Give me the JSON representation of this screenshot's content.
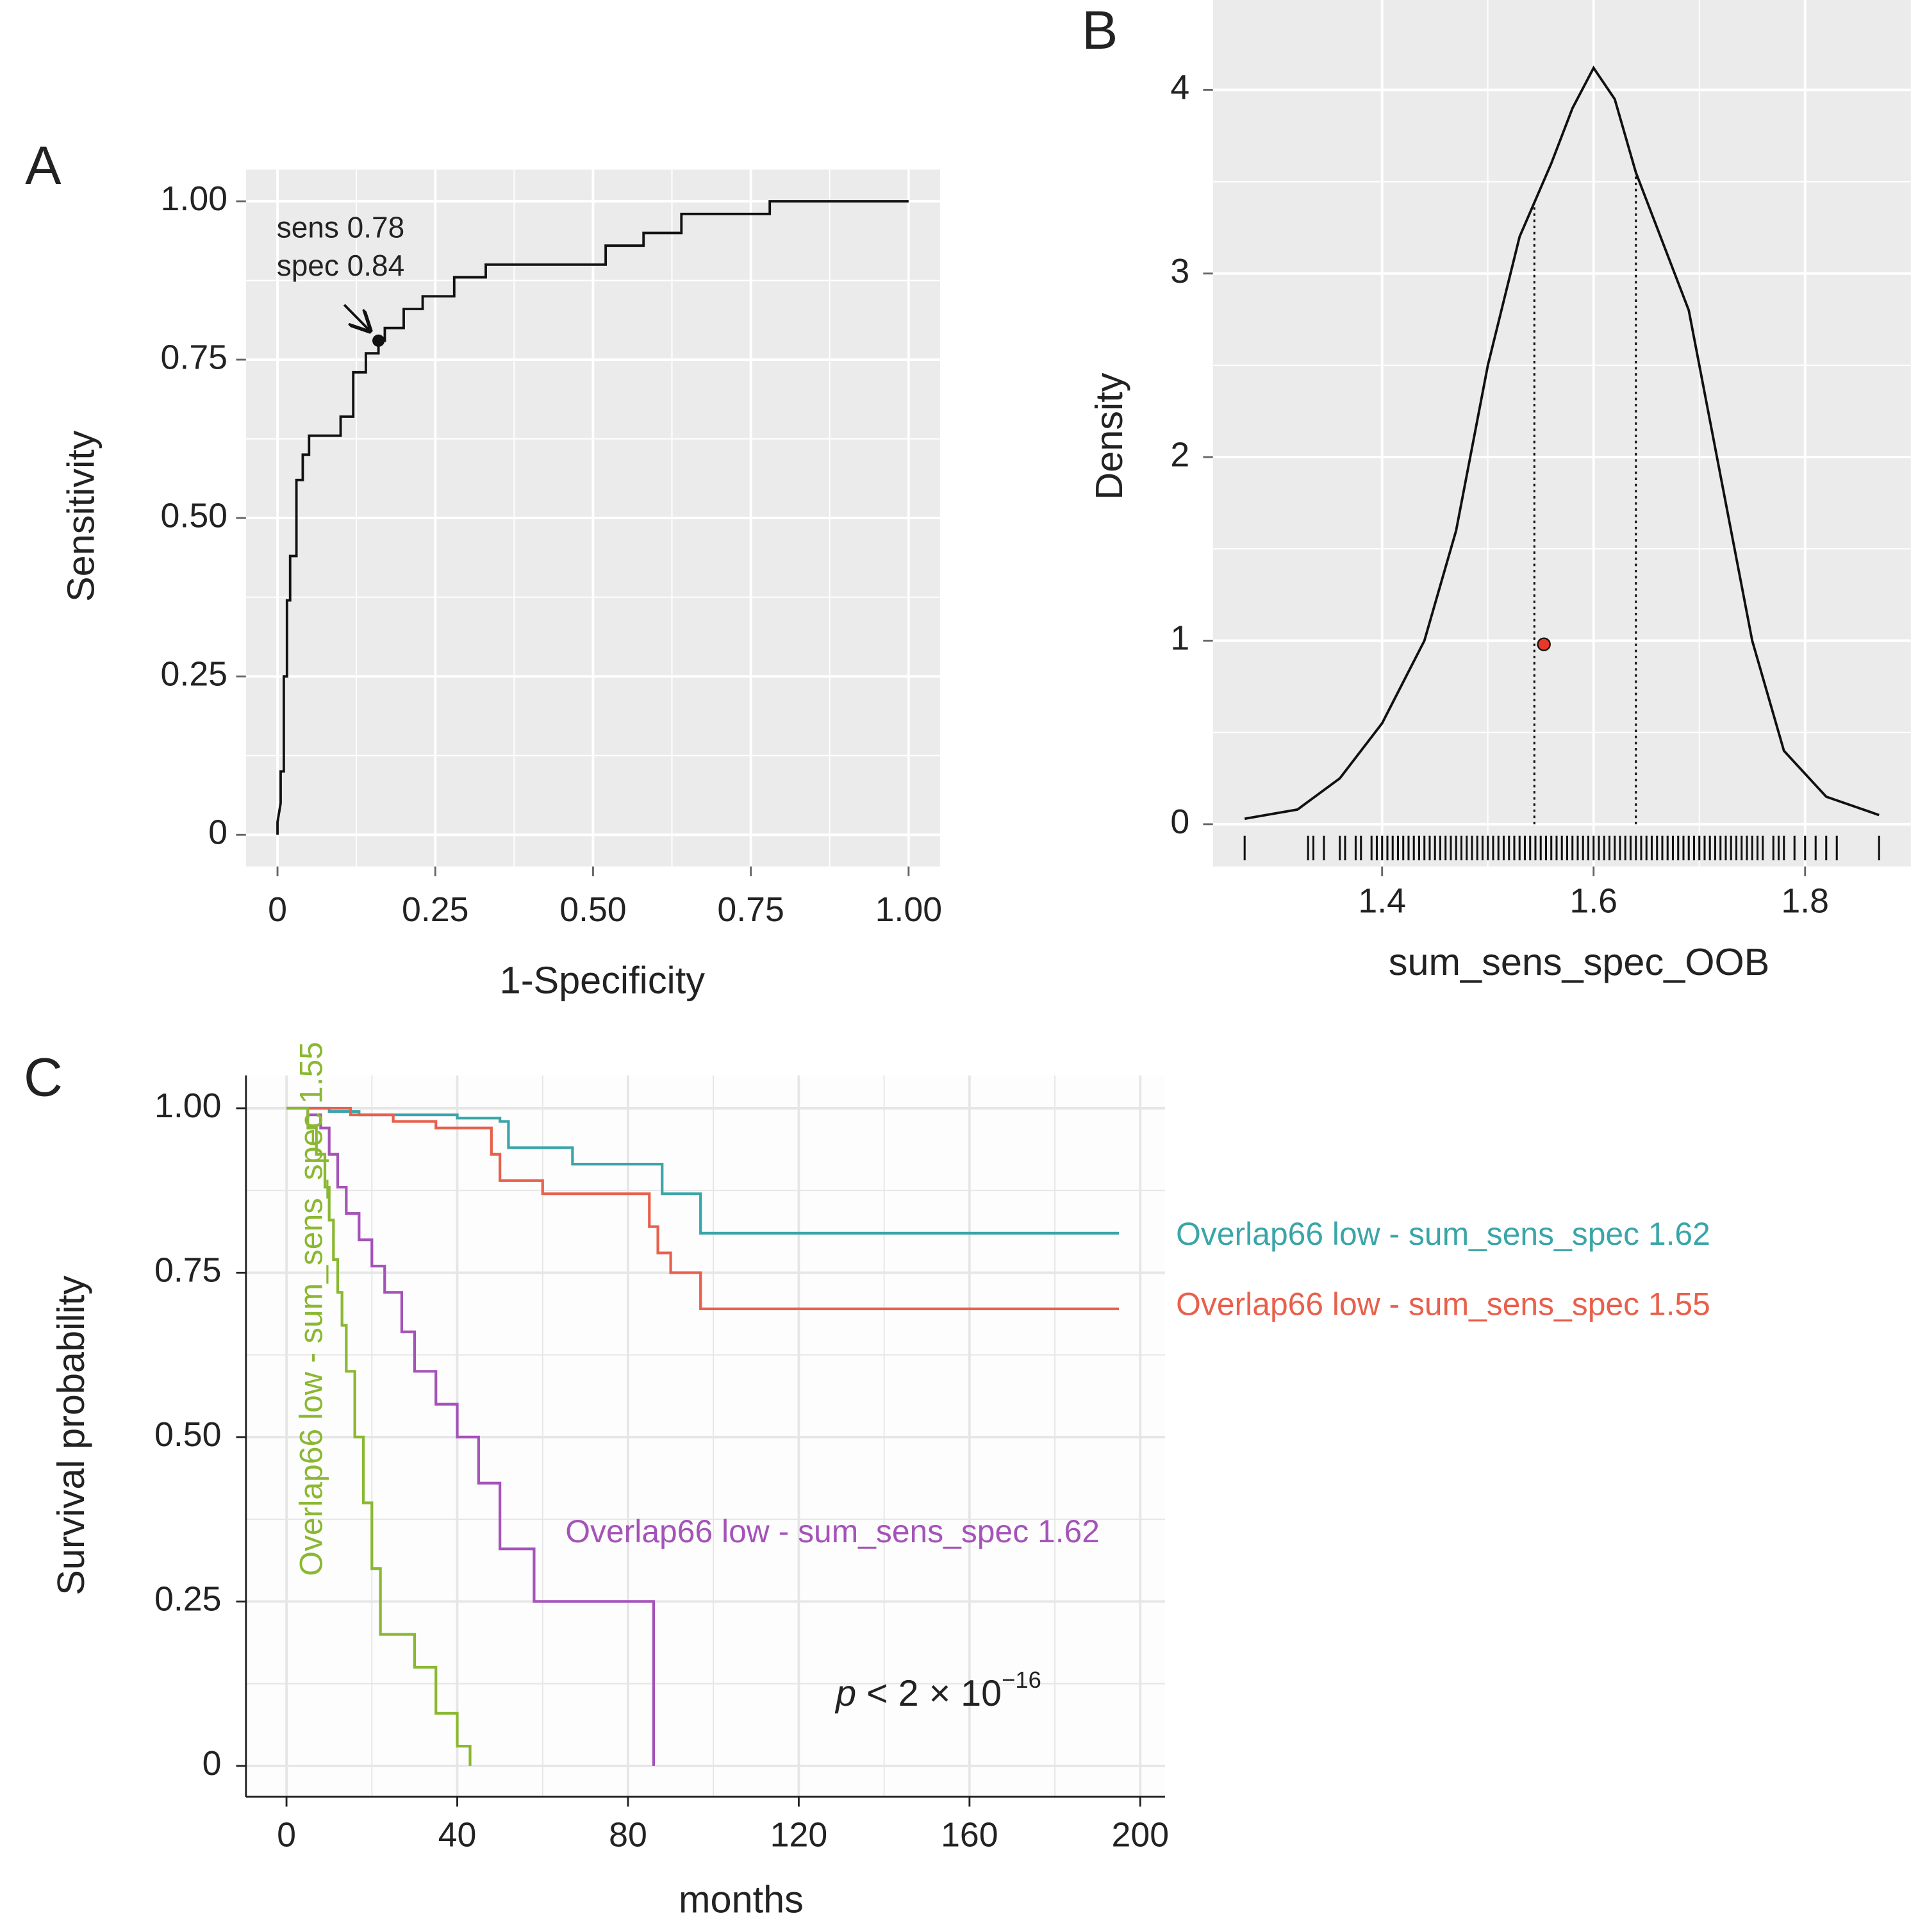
{
  "chart_data": [
    {
      "type": "line",
      "panel": "A",
      "xlabel": "1-Specificity",
      "ylabel": "Sensitivity",
      "xlim": [
        -0.05,
        1.05
      ],
      "ylim": [
        -0.05,
        1.05
      ],
      "xticks": [
        0,
        0.25,
        {
          "value": 0.5,
          "label": "0.50"
        },
        0.75,
        {
          "value": 1,
          "label": "1.00"
        }
      ],
      "yticks": [
        0,
        0.25,
        {
          "value": 0.5,
          "label": "0.50"
        },
        0.75,
        {
          "value": 1,
          "label": "1.00"
        }
      ],
      "grid": true,
      "background": "#ebebeb",
      "series": [
        {
          "color": "#111111",
          "x": [
            0,
            0,
            0.005,
            0.005,
            0.01,
            0.01,
            0.015,
            0.015,
            0.02,
            0.02,
            0.03,
            0.03,
            0.04,
            0.04,
            0.05,
            0.05,
            0.1,
            0.1,
            0.12,
            0.12,
            0.14,
            0.14,
            0.16,
            0.16,
            0.17,
            0.17,
            0.2,
            0.2,
            0.23,
            0.23,
            0.28,
            0.28,
            0.33,
            0.33,
            0.52,
            0.52,
            0.58,
            0.58,
            0.64,
            0.64,
            0.78,
            0.78,
            1
          ],
          "values": [
            0,
            0.02,
            0.05,
            0.1,
            0.1,
            0.25,
            0.25,
            0.37,
            0.37,
            0.44,
            0.44,
            0.56,
            0.56,
            0.6,
            0.6,
            0.63,
            0.63,
            0.66,
            0.66,
            0.73,
            0.73,
            0.76,
            0.76,
            0.78,
            0.78,
            0.8,
            0.8,
            0.83,
            0.83,
            0.85,
            0.85,
            0.88,
            0.88,
            0.9,
            0.9,
            0.93,
            0.93,
            0.95,
            0.95,
            0.98,
            0.98,
            1,
            1
          ]
        }
      ],
      "point": {
        "x": 0.16,
        "y": 0.78
      },
      "annotations": [
        "sens 0.78",
        "spec 0.84"
      ]
    },
    {
      "type": "line",
      "panel": "B",
      "xlabel": "sum_sens_spec_OOB",
      "ylabel": "Density",
      "xlim": [
        1.24,
        1.9
      ],
      "ylim": [
        -0.23,
        4.49
      ],
      "xticks": [
        1.4,
        1.6,
        1.8
      ],
      "yticks": [
        0,
        1,
        2,
        3,
        4
      ],
      "grid": true,
      "background": "#ebebeb",
      "series": [
        {
          "color": "#111111",
          "x": [
            1.27,
            1.32,
            1.36,
            1.4,
            1.44,
            1.47,
            1.5,
            1.53,
            1.56,
            1.58,
            1.6,
            1.62,
            1.64,
            1.66,
            1.69,
            1.72,
            1.75,
            1.78,
            1.82,
            1.87
          ],
          "values": [
            0.03,
            0.08,
            0.25,
            0.55,
            1.0,
            1.6,
            2.5,
            3.2,
            3.6,
            3.9,
            4.12,
            3.95,
            3.55,
            3.25,
            2.8,
            1.9,
            1.0,
            0.4,
            0.15,
            0.05
          ]
        }
      ],
      "vlines": [
        1.544,
        1.64
      ],
      "point": {
        "x": 1.553,
        "y": 0.98
      },
      "rug": [
        1.27,
        1.33,
        1.335,
        1.345,
        1.36,
        1.365,
        1.375,
        1.38,
        1.39,
        1.395,
        1.4,
        1.405,
        1.41,
        1.415,
        1.42,
        1.425,
        1.43,
        1.435,
        1.44,
        1.445,
        1.45,
        1.455,
        1.46,
        1.465,
        1.47,
        1.475,
        1.48,
        1.485,
        1.49,
        1.495,
        1.5,
        1.505,
        1.51,
        1.515,
        1.52,
        1.525,
        1.53,
        1.535,
        1.54,
        1.545,
        1.55,
        1.555,
        1.56,
        1.565,
        1.57,
        1.575,
        1.58,
        1.585,
        1.59,
        1.595,
        1.6,
        1.605,
        1.61,
        1.615,
        1.62,
        1.625,
        1.63,
        1.635,
        1.64,
        1.645,
        1.65,
        1.655,
        1.66,
        1.665,
        1.67,
        1.675,
        1.68,
        1.685,
        1.69,
        1.695,
        1.7,
        1.705,
        1.71,
        1.715,
        1.72,
        1.725,
        1.73,
        1.735,
        1.74,
        1.745,
        1.75,
        1.755,
        1.76,
        1.77,
        1.775,
        1.78,
        1.79,
        1.8,
        1.81,
        1.82,
        1.83,
        1.87
      ]
    },
    {
      "type": "step",
      "panel": "C",
      "xlabel": "months",
      "ylabel": "Survival probability",
      "xlim": [
        -9.5,
        205.8
      ],
      "ylim": [
        -0.047,
        1.05
      ],
      "xticks": [
        0,
        40,
        80,
        120,
        160,
        200
      ],
      "yticks": [
        0,
        0.25,
        {
          "value": 0.5,
          "label": "0.50"
        },
        0.75,
        {
          "value": 1,
          "label": "1.00"
        }
      ],
      "grid": true,
      "background": "#fdfdfd",
      "series": [
        {
          "name": "Overlap66 low - sum_sens_spec 1.62",
          "color": "#3aa5a8",
          "x": [
            0,
            10,
            17,
            40,
            50,
            52,
            67,
            88,
            97,
            195
          ],
          "values": [
            1,
            0.995,
            0.99,
            0.985,
            0.98,
            0.94,
            0.915,
            0.87,
            0.81,
            0.81
          ]
        },
        {
          "name": "Overlap66 low - sum_sens_spec 1.55",
          "color": "#e8604c",
          "x": [
            0,
            15,
            25,
            35,
            48,
            50,
            60,
            85,
            87,
            90,
            97,
            195
          ],
          "values": [
            1,
            0.99,
            0.98,
            0.97,
            0.93,
            0.89,
            0.87,
            0.82,
            0.78,
            0.75,
            0.695,
            0.695
          ]
        },
        {
          "name": "Overlap66 low - sum_sens_spec 1.62",
          "color": "#a453b8",
          "x": [
            0,
            5,
            8,
            10,
            12,
            14,
            17,
            20,
            23,
            27,
            30,
            35,
            40,
            45,
            50,
            58,
            86,
            86
          ],
          "values": [
            1,
            0.99,
            0.97,
            0.93,
            0.88,
            0.84,
            0.8,
            0.76,
            0.72,
            0.66,
            0.6,
            0.55,
            0.5,
            0.43,
            0.33,
            0.25,
            0.25,
            0
          ]
        },
        {
          "name": "Overlap66 low - sum_sens_spec 1.55",
          "color": "#8ab832",
          "x": [
            0,
            5,
            7,
            9,
            10,
            11,
            12,
            13,
            14,
            16,
            18,
            20,
            22,
            30,
            35,
            40,
            43
          ],
          "values": [
            1,
            0.97,
            0.93,
            0.88,
            0.83,
            0.77,
            0.72,
            0.67,
            0.6,
            0.5,
            0.4,
            0.3,
            0.2,
            0.15,
            0.08,
            0.03,
            0
          ]
        }
      ],
      "annotations": [
        "p",
        " < 2 × 10",
        "−16"
      ]
    }
  ]
}
